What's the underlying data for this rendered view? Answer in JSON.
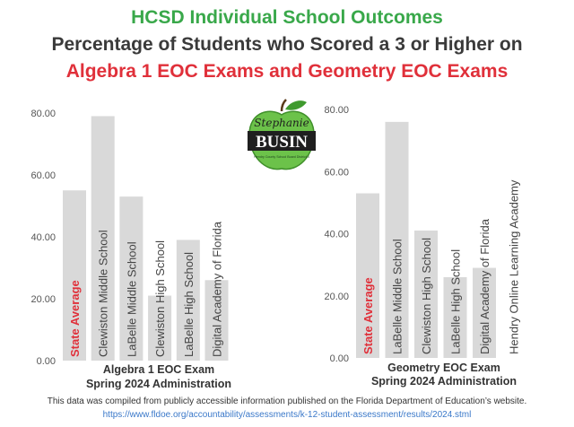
{
  "header": {
    "line1": "HCSD Individual School Outcomes",
    "line2": "Percentage of Students who Scored a 3 or Higher on",
    "line3": "Algebra 1 EOC Exams and Geometry EOC Exams"
  },
  "logo": {
    "script_text": "Stephanie",
    "main_text": "BUSIN",
    "sub_text": "Hendry County School Board District 4"
  },
  "colors": {
    "title_green": "#39a84a",
    "title_dark": "#3a3a3a",
    "title_red": "#e0303a",
    "bar": "#d9d9d9",
    "highlight_label": "#e0303a",
    "link": "#3a78c9"
  },
  "chart_data": [
    {
      "type": "bar",
      "xlabel_line1": "Algebra 1 EOC Exam",
      "xlabel_line2": "Spring 2024 Administration",
      "ylim": [
        0,
        80
      ],
      "yticks": [
        "0.00",
        "20.00",
        "40.00",
        "60.00",
        "80.00"
      ],
      "grid": false,
      "categories": [
        "State Average",
        "Clewiston Middle School",
        "LaBelle  Middle School",
        "Clewiston High School",
        "LaBelle High School",
        "Digital Academy of Florida"
      ],
      "values": [
        55,
        79,
        53,
        21,
        39,
        26
      ],
      "highlight_index": 0
    },
    {
      "type": "bar",
      "xlabel_line1": "Geometry EOC Exam",
      "xlabel_line2": "Spring 2024 Administration",
      "ylim": [
        0,
        80
      ],
      "yticks": [
        "0.00",
        "20.00",
        "40.00",
        "60.00",
        "80.00"
      ],
      "grid": false,
      "categories": [
        "State Average",
        "LaBelle  Middle School",
        "Clewiston High School",
        "LaBelle High School",
        "Digital Academy of Florida",
        "Hendry Online Learning Academy"
      ],
      "values": [
        53,
        76,
        41,
        26,
        29,
        0
      ],
      "highlight_index": 0
    }
  ],
  "footer": {
    "line1": "This data was compiled from publicly accessible information published on the Florida Department of Education’s website.",
    "link": "https://www.fldoe.org/accountability/assessments/k-12-student-assessment/results/2024.stml"
  }
}
